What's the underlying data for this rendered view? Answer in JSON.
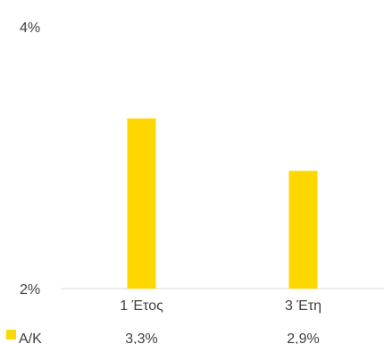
{
  "chart_data": {
    "type": "bar",
    "title": "",
    "xlabel": "",
    "ylabel": "",
    "categories": [
      "1 Έτος",
      "3 Έτη"
    ],
    "series": [
      {
        "name": "Α/Κ",
        "values": [
          3.3,
          2.9
        ],
        "value_labels": [
          "3,3%",
          "2,9%"
        ],
        "color": "#FFD700"
      }
    ],
    "ylim": [
      2,
      4
    ],
    "y_tick_labels": [
      "2%",
      "4%"
    ],
    "grid": false,
    "legend": "bottom-left, data table row",
    "axis_color": "#D9D9D9",
    "text_color": "#404040"
  }
}
